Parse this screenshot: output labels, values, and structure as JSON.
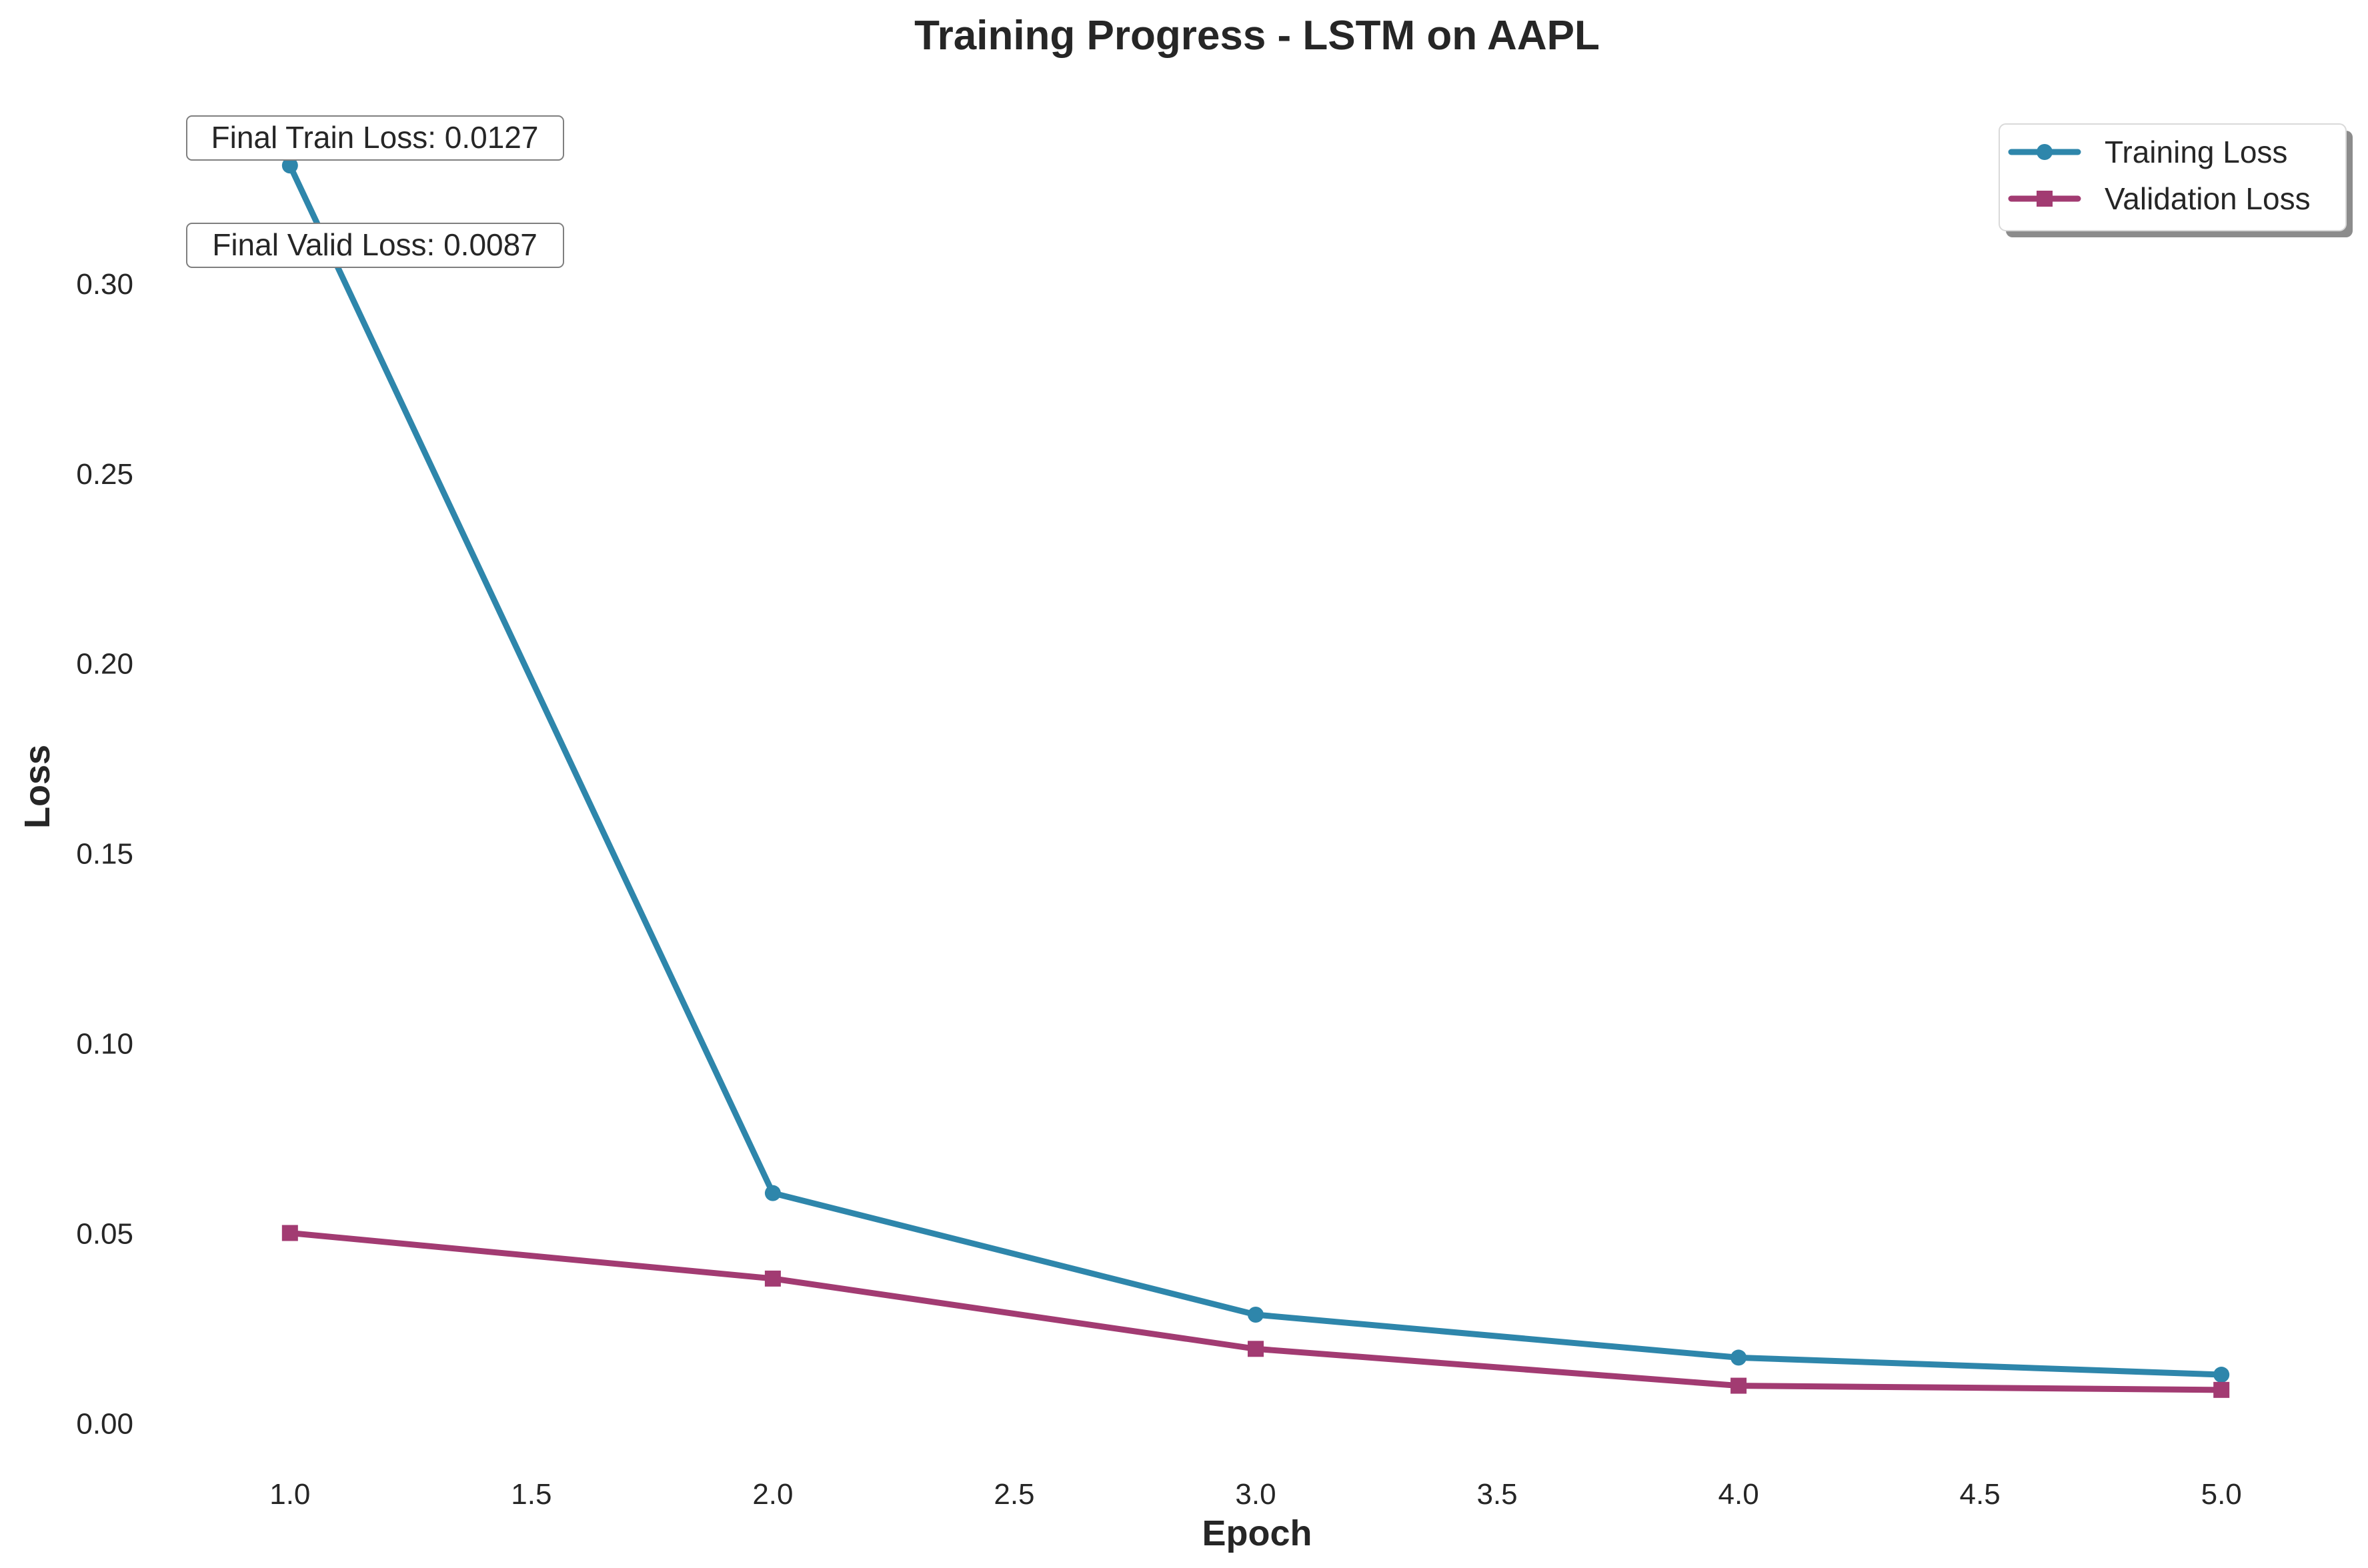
{
  "chart_data": {
    "type": "line",
    "title": "Training Progress - LSTM on AAPL",
    "xlabel": "Epoch",
    "ylabel": "Loss",
    "x": [
      1,
      2,
      3,
      4,
      5
    ],
    "xlim": [
      0.8,
      5.2
    ],
    "ylim": [
      -0.008,
      0.35
    ],
    "xticks": [
      1.0,
      1.5,
      2.0,
      2.5,
      3.0,
      3.5,
      4.0,
      4.5,
      5.0
    ],
    "xtick_labels": [
      "1.0",
      "1.5",
      "2.0",
      "2.5",
      "3.0",
      "3.5",
      "4.0",
      "4.5",
      "5.0"
    ],
    "yticks": [
      0.0,
      0.05,
      0.1,
      0.15,
      0.2,
      0.25,
      0.3
    ],
    "ytick_labels": [
      "0.00",
      "0.05",
      "0.10",
      "0.15",
      "0.20",
      "0.25",
      "0.30"
    ],
    "grid": false,
    "legend_position": "top-right",
    "series": [
      {
        "name": "Training Loss",
        "values": [
          0.331,
          0.0605,
          0.0285,
          0.0172,
          0.0127
        ],
        "color": "#2e86ab",
        "marker": "circle"
      },
      {
        "name": "Validation Loss",
        "values": [
          0.05,
          0.038,
          0.0195,
          0.0098,
          0.0087
        ],
        "color": "#a23b72",
        "marker": "square"
      }
    ],
    "annotations": [
      "Final Train Loss: 0.0127",
      "Final Valid Loss: 0.0087"
    ]
  }
}
